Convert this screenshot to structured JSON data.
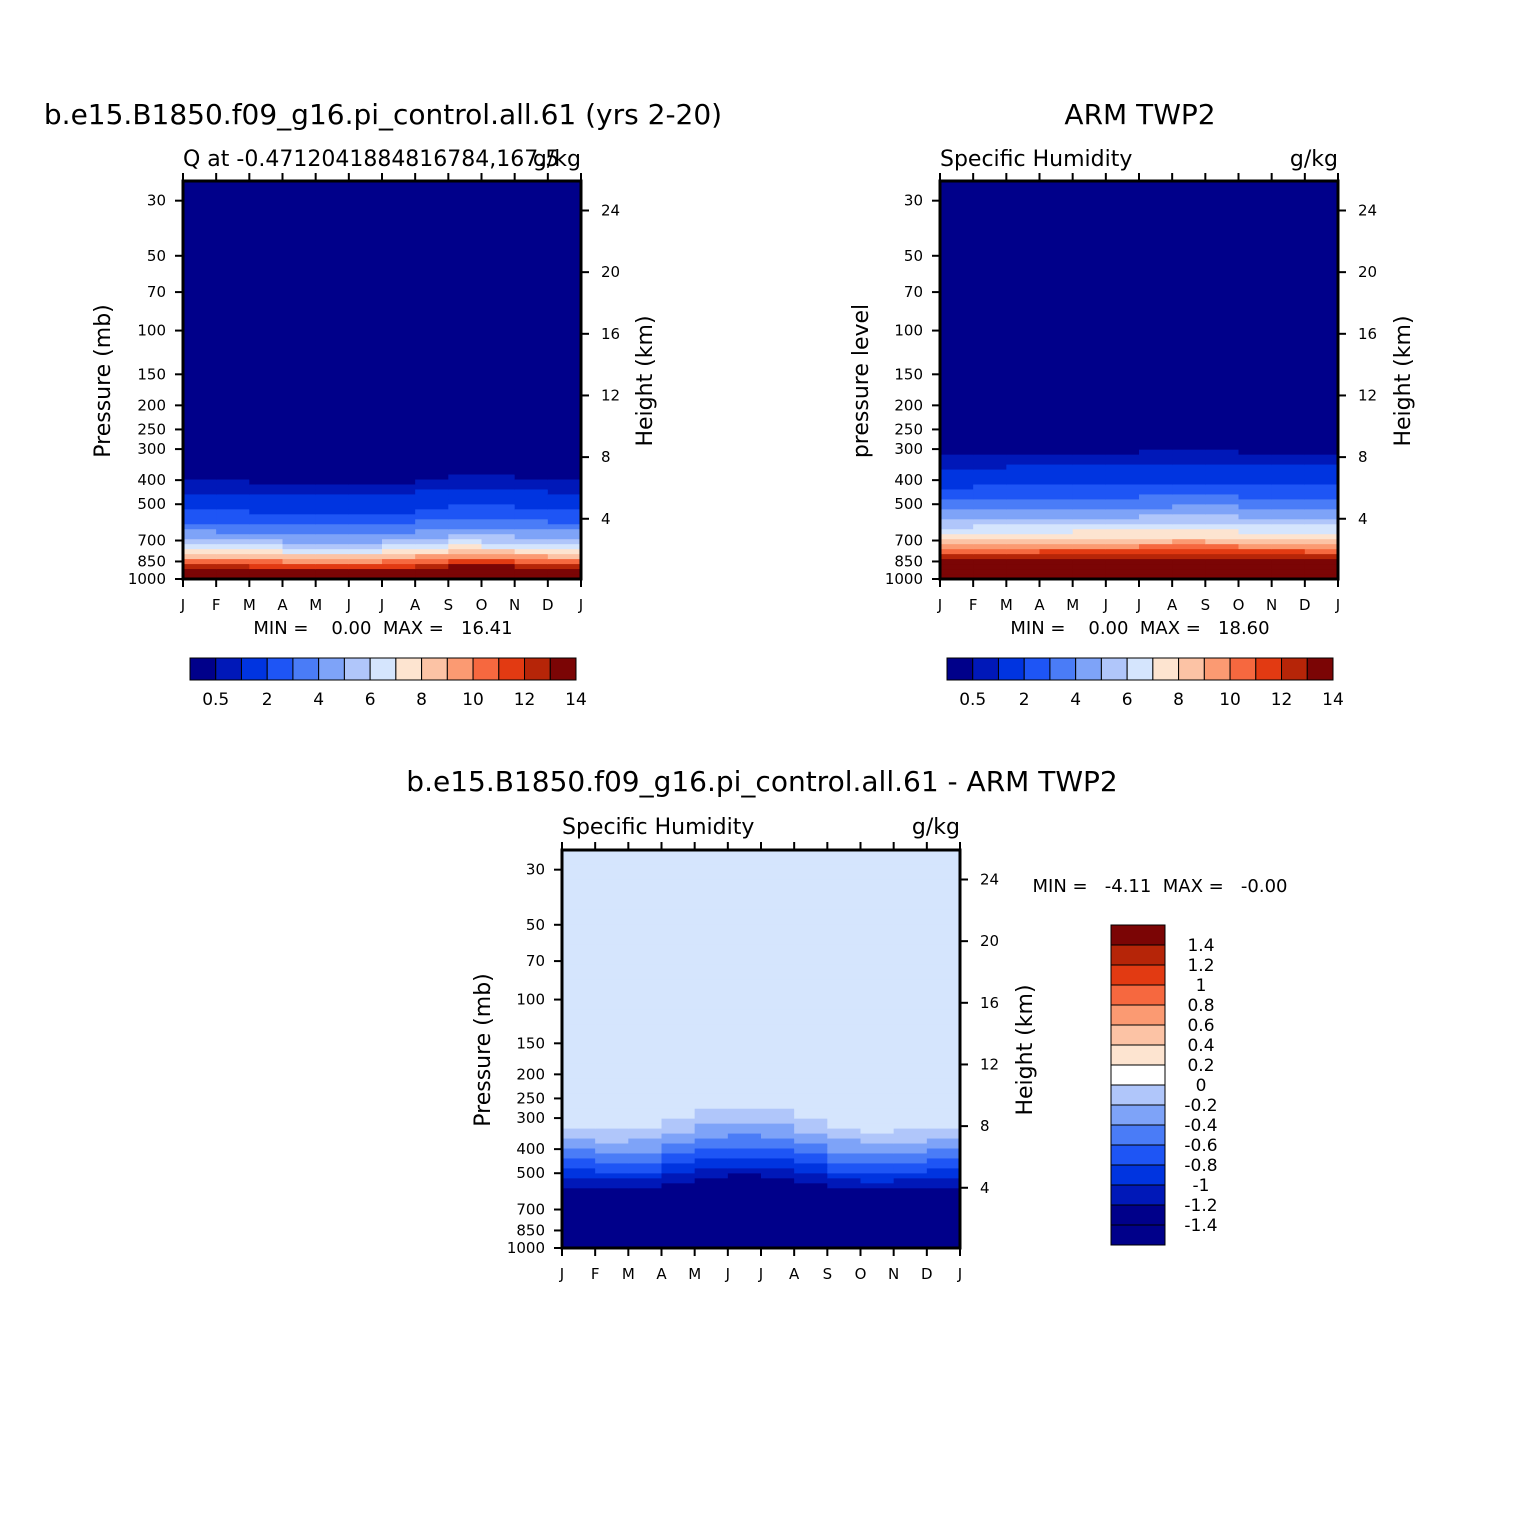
{
  "chart_data": [
    {
      "type": "heatmap",
      "main_title": "b.e15.B1850.f09_g16.pi_control.all.61 (yrs 2-20)",
      "left_subtitle": "Q at -0.4712041884816784,167.5",
      "right_subtitle": "g/kg",
      "ylabel": "Pressure (mb)",
      "ylabel_right": "Height (km)",
      "x_ticks": [
        "J",
        "F",
        "M",
        "A",
        "M",
        "J",
        "J",
        "A",
        "S",
        "O",
        "N",
        "D",
        "J"
      ],
      "y_ticks": [
        30,
        50,
        70,
        100,
        150,
        200,
        250,
        300,
        400,
        500,
        700,
        850,
        1000
      ],
      "y_right_ticks": [
        24,
        20,
        16,
        12,
        8,
        4
      ],
      "ylim": [
        1000,
        25
      ],
      "log_y": true,
      "min_max_text": "MIN =    0.00  MAX =   16.41",
      "colorbar_labels": [
        "0.5",
        "2",
        "4",
        "6",
        "8",
        "10",
        "12",
        "14"
      ],
      "contour_levels": [
        0.5,
        1,
        2,
        3,
        4,
        5,
        6,
        7,
        8,
        9,
        10,
        11,
        12,
        13,
        14
      ],
      "q_profile": [
        {
          "p": 25,
          "q": 0.0
        },
        {
          "p": 350,
          "q": 0.05
        },
        {
          "p": 420,
          "q": 0.6
        },
        {
          "p": 500,
          "q": 1.5
        },
        {
          "p": 600,
          "q": 3.0
        },
        {
          "p": 700,
          "q": 5.0
        },
        {
          "p": 800,
          "q": 8.0
        },
        {
          "p": 900,
          "q": 12.5
        },
        {
          "p": 1000,
          "q": 16.4
        }
      ],
      "month_shift_hpa": [
        5,
        5,
        0,
        -10,
        -10,
        -10,
        -10,
        0,
        25,
        30,
        20,
        10,
        5
      ],
      "colorbar_position": "bottom"
    },
    {
      "type": "heatmap",
      "main_title": "ARM TWP2",
      "left_subtitle": "Specific Humidity",
      "right_subtitle": "g/kg",
      "ylabel": "pressure level",
      "ylabel_right": "Height (km)",
      "x_ticks": [
        "J",
        "F",
        "M",
        "A",
        "M",
        "J",
        "J",
        "A",
        "S",
        "O",
        "N",
        "D",
        "J"
      ],
      "y_ticks": [
        30,
        50,
        70,
        100,
        150,
        200,
        250,
        300,
        400,
        500,
        700,
        850,
        1000
      ],
      "y_right_ticks": [
        24,
        20,
        16,
        12,
        8,
        4
      ],
      "ylim": [
        1000,
        25
      ],
      "log_y": true,
      "min_max_text": "MIN =    0.00  MAX =   18.60",
      "colorbar_labels": [
        "0.5",
        "2",
        "4",
        "6",
        "8",
        "10",
        "12",
        "14"
      ],
      "contour_levels": [
        0.5,
        1,
        2,
        3,
        4,
        5,
        6,
        7,
        8,
        9,
        10,
        11,
        12,
        13,
        14
      ],
      "q_profile": [
        {
          "p": 25,
          "q": 0.0
        },
        {
          "p": 290,
          "q": 0.05
        },
        {
          "p": 340,
          "q": 0.7
        },
        {
          "p": 420,
          "q": 1.8
        },
        {
          "p": 500,
          "q": 3.3
        },
        {
          "p": 600,
          "q": 5.5
        },
        {
          "p": 700,
          "q": 8.0
        },
        {
          "p": 800,
          "q": 11.5
        },
        {
          "p": 900,
          "q": 15.0
        },
        {
          "p": 1000,
          "q": 18.6
        }
      ],
      "month_shift_hpa": [
        0,
        5,
        5,
        10,
        15,
        15,
        15,
        20,
        25,
        15,
        10,
        10,
        5
      ],
      "colorbar_position": "bottom"
    },
    {
      "type": "heatmap",
      "main_title": "b.e15.B1850.f09_g16.pi_control.all.61 - ARM TWP2",
      "left_subtitle": "Specific Humidity",
      "right_subtitle": "g/kg",
      "ylabel": "Pressure (mb)",
      "ylabel_right": "Height (km)",
      "x_ticks": [
        "J",
        "F",
        "M",
        "A",
        "M",
        "J",
        "J",
        "A",
        "S",
        "O",
        "N",
        "D",
        "J"
      ],
      "y_ticks": [
        30,
        50,
        70,
        100,
        150,
        200,
        250,
        300,
        400,
        500,
        700,
        850,
        1000
      ],
      "y_right_ticks": [
        24,
        20,
        16,
        12,
        8,
        4
      ],
      "ylim": [
        1000,
        25
      ],
      "log_y": true,
      "min_max_text": "MIN =   -4.11  MAX =   -0.00",
      "colorbar_labels": [
        "1.4",
        "1.2",
        "1",
        "0.8",
        "0.6",
        "0.4",
        "0.2",
        "0",
        "-0.2",
        "-0.4",
        "-0.6",
        "-0.8",
        "-1",
        "-1.2",
        "-1.4"
      ],
      "contour_levels": [
        -1.4,
        -1.2,
        -1.0,
        -0.8,
        -0.6,
        -0.4,
        -0.2,
        0,
        0.2,
        0.4,
        0.6,
        0.8,
        1.0,
        1.2,
        1.4
      ],
      "diff_profile": [
        {
          "p": 25,
          "q": -0.05
        },
        {
          "p": 300,
          "q": -0.1
        },
        {
          "p": 340,
          "q": -0.3
        },
        {
          "p": 380,
          "q": -0.5
        },
        {
          "p": 420,
          "q": -0.7
        },
        {
          "p": 460,
          "q": -0.9
        },
        {
          "p": 500,
          "q": -1.1
        },
        {
          "p": 540,
          "q": -1.3
        },
        {
          "p": 580,
          "q": -1.5
        },
        {
          "p": 1000,
          "q": -2.0
        }
      ],
      "month_shift_hpa": [
        0,
        -10,
        -20,
        0,
        40,
        50,
        50,
        40,
        0,
        -20,
        -20,
        -10,
        0
      ],
      "colorbar_position": "right"
    }
  ],
  "colors": {
    "seq15": [
      "#00008a",
      "#0018b8",
      "#0034e0",
      "#1e55f5",
      "#4a7cf7",
      "#7ea3f8",
      "#b0c6fa",
      "#d5e5fd",
      "#fde4d0",
      "#fcc3a5",
      "#fb9a72",
      "#f6683f",
      "#e23a12",
      "#b62508",
      "#7b0505"
    ]
  }
}
